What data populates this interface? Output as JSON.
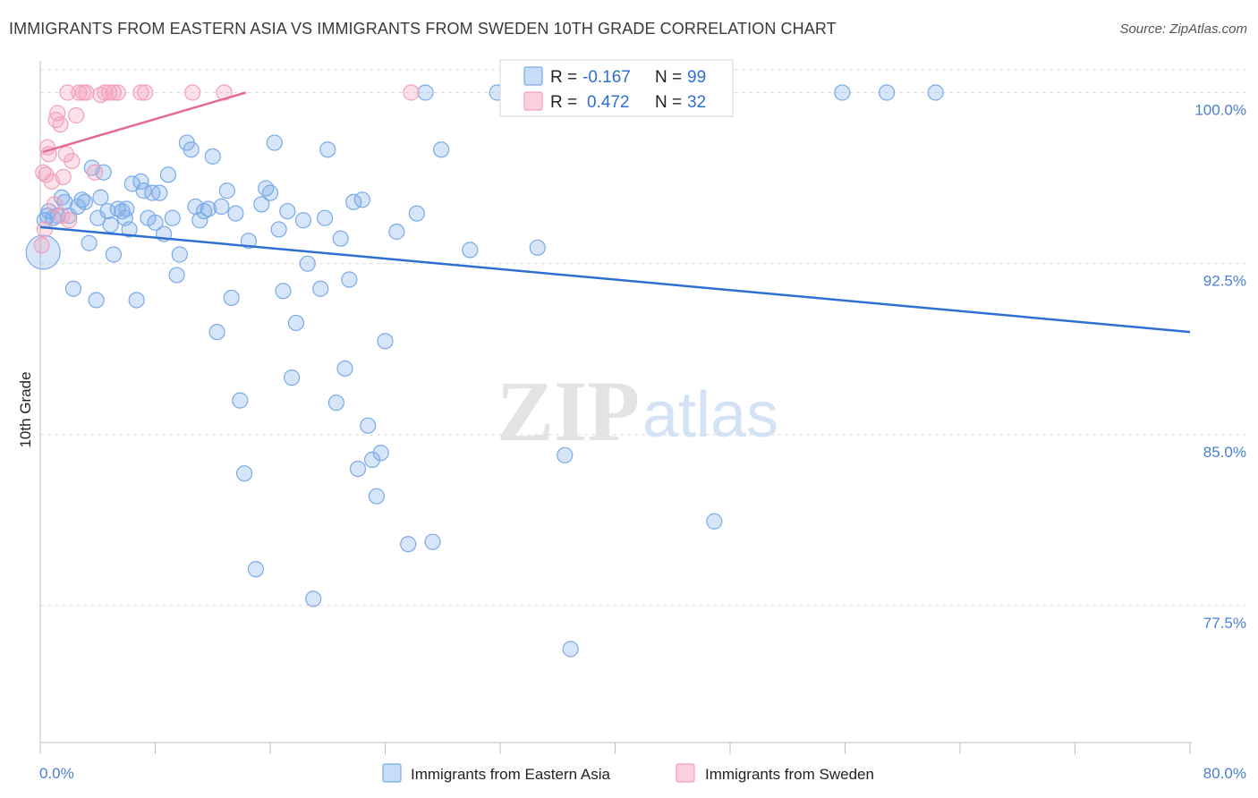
{
  "title": "IMMIGRANTS FROM EASTERN ASIA VS IMMIGRANTS FROM SWEDEN 10TH GRADE CORRELATION CHART",
  "source": "Source: ZipAtlas.com",
  "watermark": {
    "zip": "ZIP",
    "atlas": "atlas"
  },
  "colors": {
    "blue": "#7aaae8",
    "blue_line": "#2e6fd1",
    "pink": "#f2a0ba",
    "pink_line": "#e36a92",
    "tick_text": "#4a7fd0"
  },
  "stats": {
    "blue": {
      "r_label": "R = ",
      "r": "-0.167",
      "n_label": "N = ",
      "n": "99"
    },
    "pink": {
      "r_label": "R = ",
      "r": "0.472",
      "n_label": "N = ",
      "n": "32"
    }
  },
  "chart_data": {
    "type": "scatter",
    "title": "IMMIGRANTS FROM EASTERN ASIA VS IMMIGRANTS FROM SWEDEN 10TH GRADE CORRELATION CHART",
    "ylabel": "10th Grade",
    "xlim": [
      0,
      80
    ],
    "ylim": [
      71.5,
      101
    ],
    "x_tick_labels": [
      "0.0%",
      "80.0%"
    ],
    "y_ticks": [
      100.0,
      92.5,
      85.0,
      77.5
    ],
    "y_tick_labels": [
      "100.0%",
      "92.5%",
      "85.0%",
      "77.5%"
    ],
    "grid": true,
    "legend_position": "bottom",
    "series": [
      {
        "name": "Immigrants from Eastern Asia",
        "color": "#7aaae8",
        "trend": {
          "x": [
            0,
            80
          ],
          "y": [
            94.1,
            89.5
          ]
        },
        "points": [
          [
            0.2,
            93.0
          ],
          [
            0.5,
            94.6
          ],
          [
            0.9,
            94.5
          ],
          [
            1.2,
            94.6
          ],
          [
            1.5,
            95.4
          ],
          [
            1.7,
            95.2
          ],
          [
            2.3,
            91.4
          ],
          [
            2.6,
            95.0
          ],
          [
            2.9,
            95.3
          ],
          [
            3.1,
            95.2
          ],
          [
            3.4,
            93.4
          ],
          [
            3.6,
            96.7
          ],
          [
            3.9,
            90.9
          ],
          [
            4.2,
            95.4
          ],
          [
            4.4,
            96.5
          ],
          [
            4.7,
            94.8
          ],
          [
            4.9,
            94.2
          ],
          [
            5.1,
            92.9
          ],
          [
            5.4,
            94.9
          ],
          [
            5.7,
            94.8
          ],
          [
            5.9,
            94.5
          ],
          [
            6.2,
            94.0
          ],
          [
            6.4,
            96.0
          ],
          [
            6.7,
            90.9
          ],
          [
            7.0,
            96.1
          ],
          [
            7.2,
            95.7
          ],
          [
            7.5,
            94.5
          ],
          [
            7.8,
            95.6
          ],
          [
            8.0,
            94.3
          ],
          [
            8.3,
            95.6
          ],
          [
            8.6,
            93.8
          ],
          [
            8.9,
            96.4
          ],
          [
            9.2,
            94.5
          ],
          [
            9.5,
            92.0
          ],
          [
            9.7,
            92.9
          ],
          [
            10.2,
            97.8
          ],
          [
            10.5,
            97.5
          ],
          [
            10.8,
            95.0
          ],
          [
            11.1,
            94.4
          ],
          [
            11.4,
            94.8
          ],
          [
            11.7,
            94.9
          ],
          [
            12.0,
            97.2
          ],
          [
            12.3,
            89.5
          ],
          [
            12.6,
            95.0
          ],
          [
            13.0,
            95.7
          ],
          [
            13.3,
            91.0
          ],
          [
            13.6,
            94.7
          ],
          [
            13.9,
            86.5
          ],
          [
            14.2,
            83.3
          ],
          [
            14.5,
            93.5
          ],
          [
            15.0,
            79.1
          ],
          [
            15.4,
            95.1
          ],
          [
            15.7,
            95.8
          ],
          [
            16.0,
            95.6
          ],
          [
            16.3,
            97.8
          ],
          [
            16.6,
            94.0
          ],
          [
            16.9,
            91.3
          ],
          [
            17.2,
            94.8
          ],
          [
            17.5,
            87.5
          ],
          [
            17.8,
            89.9
          ],
          [
            18.3,
            94.4
          ],
          [
            18.6,
            92.5
          ],
          [
            19.0,
            77.8
          ],
          [
            19.5,
            91.4
          ],
          [
            19.8,
            94.5
          ],
          [
            20.0,
            97.5
          ],
          [
            20.6,
            86.4
          ],
          [
            20.9,
            93.6
          ],
          [
            21.2,
            87.9
          ],
          [
            21.5,
            91.8
          ],
          [
            21.8,
            95.2
          ],
          [
            22.1,
            83.5
          ],
          [
            22.4,
            95.3
          ],
          [
            22.8,
            85.4
          ],
          [
            23.1,
            83.9
          ],
          [
            23.4,
            82.3
          ],
          [
            23.7,
            84.2
          ],
          [
            24.0,
            89.1
          ],
          [
            24.8,
            93.9
          ],
          [
            25.6,
            80.2
          ],
          [
            26.2,
            94.7
          ],
          [
            26.8,
            100.0
          ],
          [
            27.3,
            80.3
          ],
          [
            27.9,
            97.5
          ],
          [
            29.9,
            93.1
          ],
          [
            31.8,
            100.0
          ],
          [
            34.6,
            93.2
          ],
          [
            36.5,
            84.1
          ],
          [
            36.9,
            75.6
          ],
          [
            44.6,
            100.0
          ],
          [
            46.9,
            81.2
          ],
          [
            55.8,
            100.0
          ],
          [
            58.9,
            100.0
          ],
          [
            62.3,
            100.0
          ],
          [
            0.3,
            94.4
          ],
          [
            0.6,
            94.8
          ],
          [
            2.0,
            94.6
          ],
          [
            4.0,
            94.5
          ],
          [
            6.0,
            94.9
          ]
        ]
      },
      {
        "name": "Immigrants from Sweden",
        "color": "#f2a0ba",
        "trend": {
          "x": [
            0.2,
            14.3
          ],
          "y": [
            97.4,
            100.0
          ]
        },
        "points": [
          [
            0.1,
            93.3
          ],
          [
            0.2,
            96.5
          ],
          [
            0.3,
            94.0
          ],
          [
            0.4,
            96.4
          ],
          [
            0.5,
            97.6
          ],
          [
            0.6,
            97.3
          ],
          [
            0.8,
            96.1
          ],
          [
            1.0,
            95.1
          ],
          [
            1.1,
            98.8
          ],
          [
            1.2,
            99.1
          ],
          [
            1.4,
            98.6
          ],
          [
            1.5,
            94.6
          ],
          [
            1.6,
            96.3
          ],
          [
            1.8,
            97.3
          ],
          [
            1.9,
            100.0
          ],
          [
            2.0,
            94.4
          ],
          [
            2.2,
            97.0
          ],
          [
            2.5,
            99.0
          ],
          [
            2.7,
            100.0
          ],
          [
            3.0,
            100.0
          ],
          [
            3.2,
            100.0
          ],
          [
            3.8,
            96.5
          ],
          [
            4.2,
            99.9
          ],
          [
            4.5,
            100.0
          ],
          [
            4.8,
            100.0
          ],
          [
            5.1,
            100.0
          ],
          [
            5.4,
            100.0
          ],
          [
            7.0,
            100.0
          ],
          [
            7.3,
            100.0
          ],
          [
            10.6,
            100.0
          ],
          [
            12.8,
            100.0
          ],
          [
            25.8,
            100.0
          ]
        ]
      }
    ]
  }
}
